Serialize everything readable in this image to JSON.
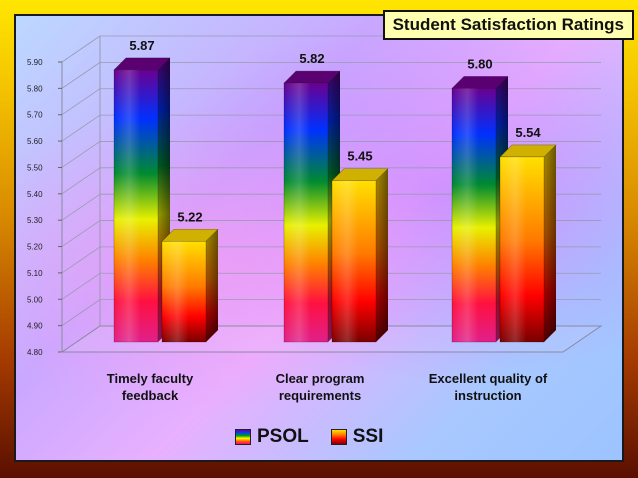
{
  "chart_data": {
    "type": "bar",
    "title": "Student Satisfaction Ratings",
    "categories": [
      "Timely faculty feedback",
      "Clear program requirements",
      "Excellent quality of instruction"
    ],
    "category_lines": [
      [
        "Timely faculty",
        "feedback"
      ],
      [
        "Clear program",
        "requirements"
      ],
      [
        "Excellent quality of",
        "instruction"
      ]
    ],
    "series": [
      {
        "name": "PSOL",
        "values": [
          5.87,
          5.82,
          5.8
        ],
        "value_labels": [
          "5.87",
          "5.82",
          "5.80"
        ]
      },
      {
        "name": "SSI",
        "values": [
          5.22,
          5.45,
          5.54
        ],
        "value_labels": [
          "5.22",
          "5.45",
          "5.54"
        ]
      }
    ],
    "ylim": [
      4.8,
      5.9
    ],
    "yticks": [
      "4.80",
      "4.90",
      "5.00",
      "5.10",
      "5.20",
      "5.30",
      "5.40",
      "5.50",
      "5.60",
      "5.70",
      "5.80",
      "5.90"
    ],
    "grid": true,
    "legend_position": "bottom",
    "xlabel": "",
    "ylabel": ""
  }
}
